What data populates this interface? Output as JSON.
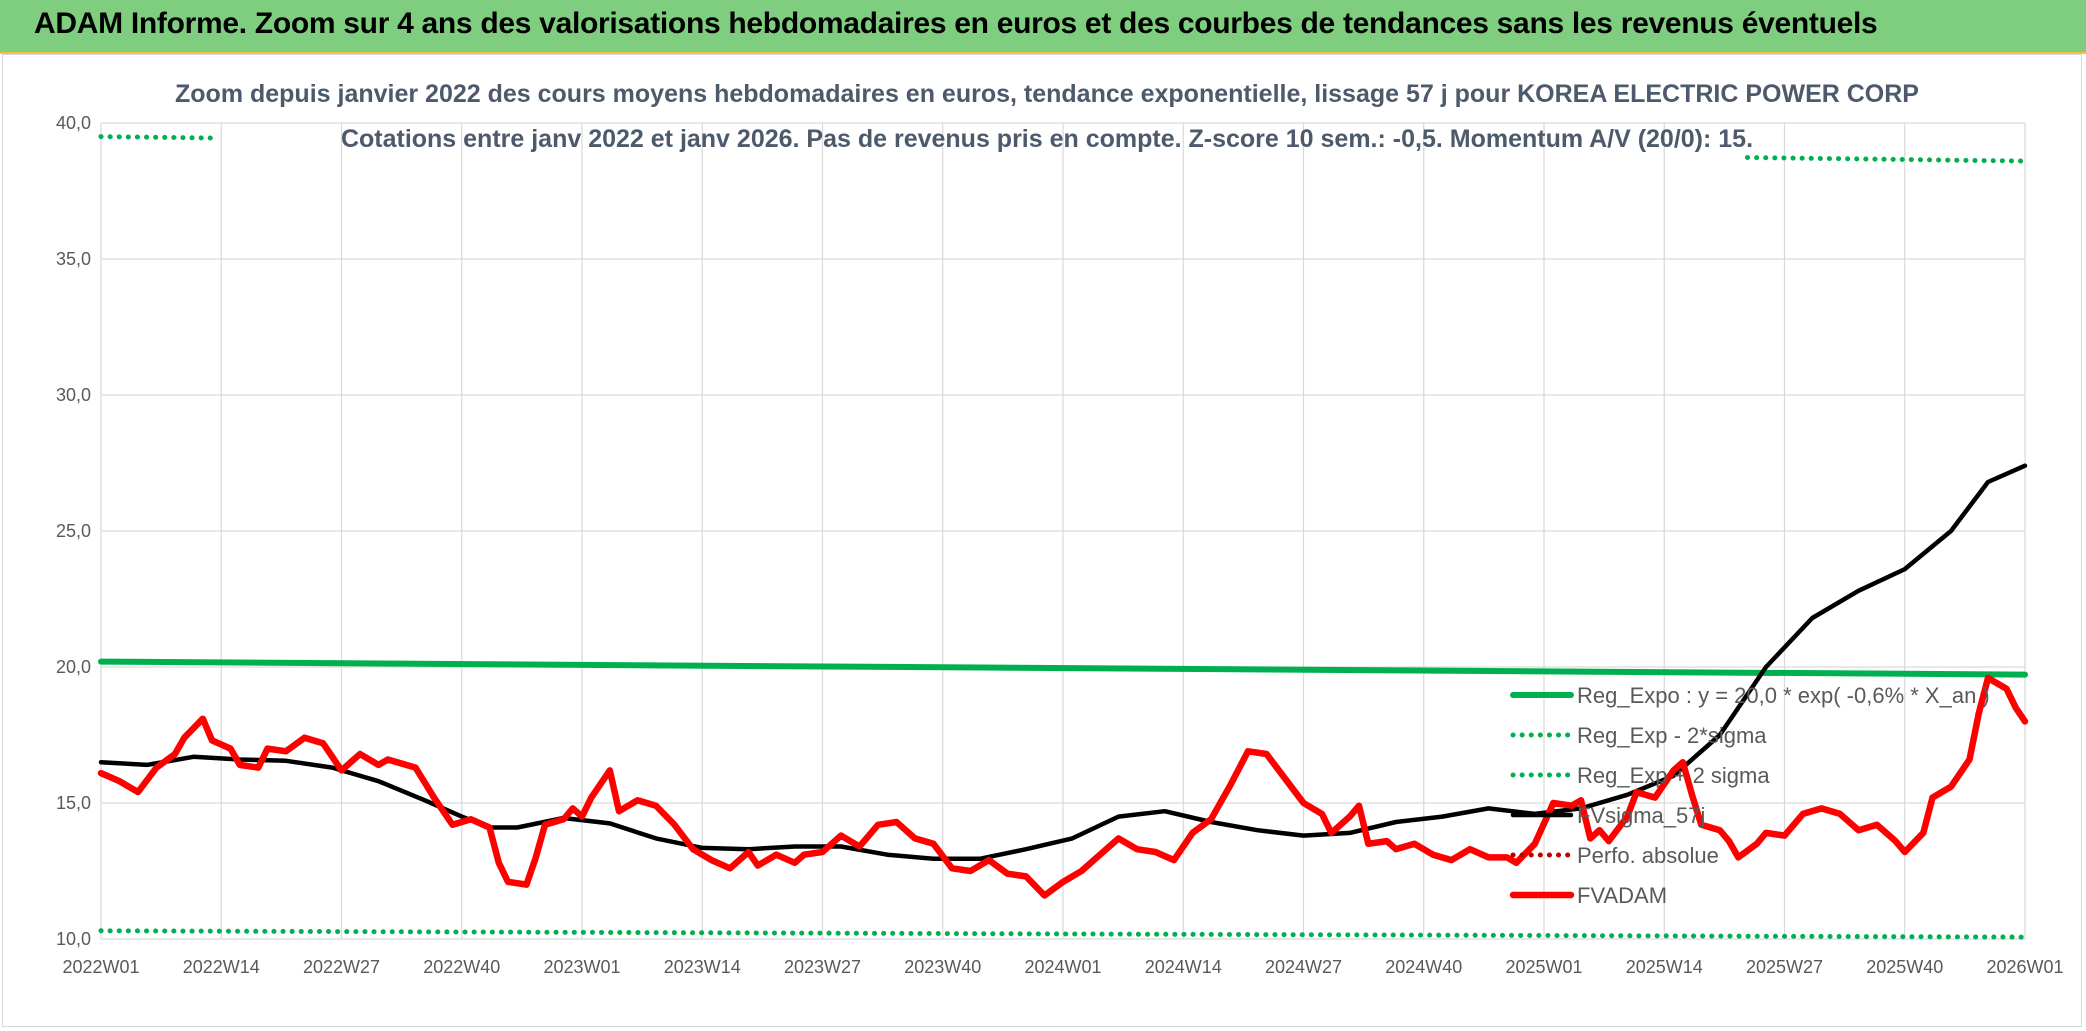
{
  "banner": {
    "title": "ADAM Informe. Zoom sur 4 ans des valorisations hebdomadaires en euros et des courbes de tendances sans les revenus éventuels"
  },
  "chart_data": {
    "type": "line",
    "title": "Zoom depuis janvier 2022 des cours moyens hebdomadaires en euros, tendance exponentielle, lissage 57 j pour KOREA ELECTRIC POWER CORP",
    "subtitle": "Cotations entre janv 2022 et janv 2026. Pas de revenus pris en compte. Z-score 10 sem.: -0,5. Momentum A/V (20/0): 15.",
    "ylim": [
      10,
      40
    ],
    "y_ticks": [
      "10,0",
      "15,0",
      "20,0",
      "25,0",
      "30,0",
      "35,0",
      "40,0"
    ],
    "x_ticks": [
      "2022W01",
      "2022W14",
      "2022W27",
      "2022W40",
      "2023W01",
      "2023W14",
      "2023W27",
      "2023W40",
      "2024W01",
      "2024W14",
      "2024W27",
      "2024W40",
      "2025W01",
      "2025W14",
      "2025W27",
      "2025W40",
      "2026W01"
    ],
    "x_tick_weeks": [
      0,
      13,
      26,
      39,
      52,
      65,
      78,
      91,
      104,
      117,
      130,
      143,
      156,
      169,
      182,
      195,
      208
    ],
    "grid": "vertical and horizontal",
    "legend_position": "bottom-right, inside plot",
    "colors": {
      "reg_expo": "#00b050",
      "sigma": "#00b050",
      "smoothed": "#000000",
      "perfo": "#c00000",
      "fvadam": "#ff0000"
    },
    "series": [
      {
        "name": "Reg_Expo : y = 20,0 * exp( -0,6% *  X_an )",
        "style": "solid",
        "points": [
          [
            0,
            20.2
          ],
          [
            208,
            19.72
          ]
        ]
      },
      {
        "name": "Reg_Exp - 2*sigma",
        "style": "dotted",
        "points": [
          [
            0,
            10.3
          ],
          [
            208,
            10.07
          ]
        ]
      },
      {
        "name": "Reg_Exp + 2 sigma",
        "style": "dotted",
        "points": [
          [
            0,
            39.5
          ],
          [
            208,
            38.6
          ]
        ]
      },
      {
        "name": "FVsigma_57j",
        "style": "solid",
        "points": [
          [
            0,
            16.5
          ],
          [
            5,
            16.4
          ],
          [
            10,
            16.7
          ],
          [
            15,
            16.6
          ],
          [
            20,
            16.55
          ],
          [
            25,
            16.3
          ],
          [
            30,
            15.8
          ],
          [
            35,
            15.1
          ],
          [
            39,
            14.5
          ],
          [
            42,
            14.1
          ],
          [
            45,
            14.1
          ],
          [
            50,
            14.45
          ],
          [
            55,
            14.25
          ],
          [
            60,
            13.7
          ],
          [
            65,
            13.35
          ],
          [
            70,
            13.3
          ],
          [
            75,
            13.4
          ],
          [
            80,
            13.4
          ],
          [
            85,
            13.1
          ],
          [
            90,
            12.95
          ],
          [
            95,
            12.95
          ],
          [
            100,
            13.3
          ],
          [
            105,
            13.7
          ],
          [
            110,
            14.5
          ],
          [
            115,
            14.7
          ],
          [
            120,
            14.3
          ],
          [
            125,
            14.0
          ],
          [
            130,
            13.8
          ],
          [
            135,
            13.9
          ],
          [
            140,
            14.3
          ],
          [
            145,
            14.5
          ],
          [
            150,
            14.8
          ],
          [
            155,
            14.6
          ],
          [
            160,
            14.8
          ],
          [
            165,
            15.3
          ],
          [
            170,
            16.0
          ],
          [
            175,
            17.5
          ],
          [
            180,
            20.0
          ],
          [
            185,
            21.8
          ],
          [
            190,
            22.8
          ],
          [
            195,
            23.6
          ],
          [
            200,
            25.0
          ],
          [
            204,
            26.8
          ],
          [
            208,
            27.4
          ]
        ]
      },
      {
        "name": "Perfo. absolue",
        "style": "dotted",
        "points": []
      },
      {
        "name": "FVADAM",
        "style": "solid",
        "points": [
          [
            0,
            16.1
          ],
          [
            2,
            15.8
          ],
          [
            4,
            15.4
          ],
          [
            6,
            16.3
          ],
          [
            8,
            16.8
          ],
          [
            9,
            17.4
          ],
          [
            11,
            18.1
          ],
          [
            12,
            17.3
          ],
          [
            14,
            17.0
          ],
          [
            15,
            16.4
          ],
          [
            17,
            16.3
          ],
          [
            18,
            17.0
          ],
          [
            20,
            16.9
          ],
          [
            22,
            17.4
          ],
          [
            24,
            17.2
          ],
          [
            26,
            16.2
          ],
          [
            28,
            16.8
          ],
          [
            30,
            16.4
          ],
          [
            31,
            16.6
          ],
          [
            34,
            16.3
          ],
          [
            36,
            15.2
          ],
          [
            38,
            14.2
          ],
          [
            40,
            14.4
          ],
          [
            42,
            14.1
          ],
          [
            43,
            12.8
          ],
          [
            44,
            12.1
          ],
          [
            46,
            12.0
          ],
          [
            47,
            13.0
          ],
          [
            48,
            14.2
          ],
          [
            50,
            14.4
          ],
          [
            51,
            14.8
          ],
          [
            52,
            14.5
          ],
          [
            53,
            15.2
          ],
          [
            55,
            16.2
          ],
          [
            56,
            14.7
          ],
          [
            58,
            15.1
          ],
          [
            60,
            14.9
          ],
          [
            62,
            14.2
          ],
          [
            64,
            13.3
          ],
          [
            66,
            12.9
          ],
          [
            68,
            12.6
          ],
          [
            70,
            13.2
          ],
          [
            71,
            12.7
          ],
          [
            73,
            13.1
          ],
          [
            75,
            12.8
          ],
          [
            76,
            13.1
          ],
          [
            78,
            13.2
          ],
          [
            80,
            13.8
          ],
          [
            82,
            13.4
          ],
          [
            84,
            14.2
          ],
          [
            86,
            14.3
          ],
          [
            88,
            13.7
          ],
          [
            90,
            13.5
          ],
          [
            92,
            12.6
          ],
          [
            94,
            12.5
          ],
          [
            96,
            12.9
          ],
          [
            98,
            12.4
          ],
          [
            100,
            12.3
          ],
          [
            102,
            11.6
          ],
          [
            104,
            12.1
          ],
          [
            106,
            12.5
          ],
          [
            108,
            13.1
          ],
          [
            110,
            13.7
          ],
          [
            112,
            13.3
          ],
          [
            114,
            13.2
          ],
          [
            116,
            12.9
          ],
          [
            118,
            13.9
          ],
          [
            120,
            14.4
          ],
          [
            122,
            15.6
          ],
          [
            124,
            16.9
          ],
          [
            126,
            16.8
          ],
          [
            128,
            15.9
          ],
          [
            130,
            15.0
          ],
          [
            132,
            14.6
          ],
          [
            133,
            13.9
          ],
          [
            135,
            14.5
          ],
          [
            136,
            14.9
          ],
          [
            137,
            13.5
          ],
          [
            139,
            13.6
          ],
          [
            140,
            13.3
          ],
          [
            142,
            13.5
          ],
          [
            144,
            13.1
          ],
          [
            146,
            12.9
          ],
          [
            148,
            13.3
          ],
          [
            150,
            13.0
          ],
          [
            152,
            13.0
          ],
          [
            153,
            12.8
          ],
          [
            155,
            13.5
          ],
          [
            157,
            15.0
          ],
          [
            159,
            14.9
          ],
          [
            160,
            15.1
          ],
          [
            161,
            13.7
          ],
          [
            162,
            14.0
          ],
          [
            163,
            13.6
          ],
          [
            165,
            14.5
          ],
          [
            166,
            15.4
          ],
          [
            168,
            15.2
          ],
          [
            170,
            16.2
          ],
          [
            171,
            16.5
          ],
          [
            172,
            15.3
          ],
          [
            173,
            14.2
          ],
          [
            175,
            14.0
          ],
          [
            176,
            13.6
          ],
          [
            177,
            13.0
          ],
          [
            179,
            13.5
          ],
          [
            180,
            13.9
          ],
          [
            182,
            13.8
          ],
          [
            184,
            14.6
          ],
          [
            186,
            14.8
          ],
          [
            188,
            14.6
          ],
          [
            190,
            14.0
          ],
          [
            192,
            14.2
          ],
          [
            194,
            13.6
          ],
          [
            195,
            13.2
          ],
          [
            197,
            13.9
          ],
          [
            198,
            15.2
          ],
          [
            200,
            15.6
          ],
          [
            202,
            16.6
          ],
          [
            203,
            18.3
          ],
          [
            204,
            19.6
          ],
          [
            206,
            19.2
          ],
          [
            207,
            18.5
          ],
          [
            208,
            18.0
          ]
        ]
      }
    ]
  }
}
